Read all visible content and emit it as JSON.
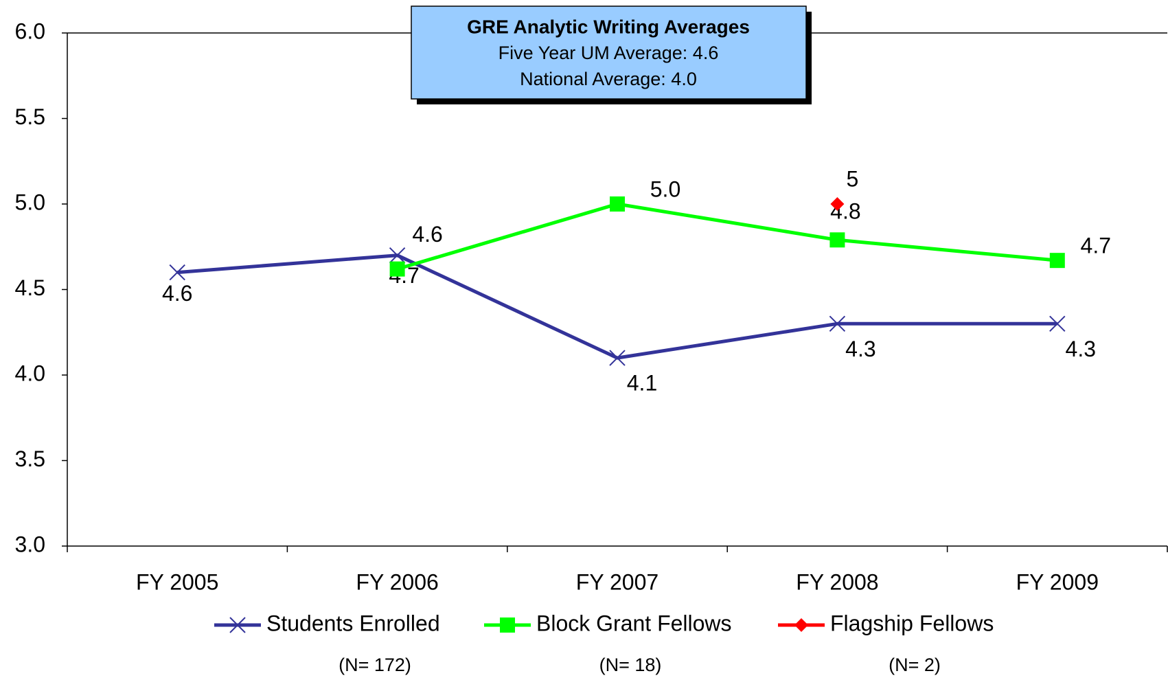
{
  "chart_data": {
    "type": "line",
    "title": "GRE Analytic Writing Averages",
    "subtitle": [
      "Five Year  UM Average: 4.6",
      "National Average: 4.0"
    ],
    "categories": [
      "FY 2005",
      "FY 2006",
      "FY 2007",
      "FY 2008",
      "FY 2009"
    ],
    "series": [
      {
        "name": "Students Enrolled",
        "color": "#333399",
        "marker": "x",
        "values": [
          4.6,
          4.7,
          4.1,
          4.3,
          4.3
        ],
        "value_labels": [
          "4.6",
          "4.7",
          "4.1",
          "4.3",
          "4.3"
        ]
      },
      {
        "name": "Block Grant Fellows",
        "color": "#00ff00",
        "marker": "square",
        "values": [
          null,
          4.62,
          5.0,
          4.79,
          4.67
        ],
        "value_labels": [
          null,
          "4.6",
          "5.0",
          "4.8",
          "4.7"
        ]
      },
      {
        "name": "Flagship Fellows",
        "color": "#ff0000",
        "marker": "diamond",
        "values": [
          null,
          null,
          null,
          5,
          null
        ],
        "value_labels": [
          null,
          null,
          null,
          "5",
          null
        ]
      }
    ],
    "notes": [
      {
        "text": "(N= 172)",
        "color": "#0000cc"
      },
      {
        "text": "(N= 18)",
        "color": "#008000"
      },
      {
        "text": "(N= 2)",
        "color": "#ff0000"
      }
    ],
    "ylim": [
      3.0,
      6.0
    ],
    "yticks": [
      {
        "value": 3,
        "label": "3.0"
      },
      {
        "value": 3.5,
        "label": "3.5"
      },
      {
        "value": 4,
        "label": "4.0"
      },
      {
        "value": 4.5,
        "label": "4.5"
      },
      {
        "value": 5,
        "label": "5.0"
      },
      {
        "value": 5.5,
        "label": "5.5"
      },
      {
        "value": 6,
        "label": "6.0"
      }
    ],
    "grid": false,
    "legend": "bottom"
  }
}
